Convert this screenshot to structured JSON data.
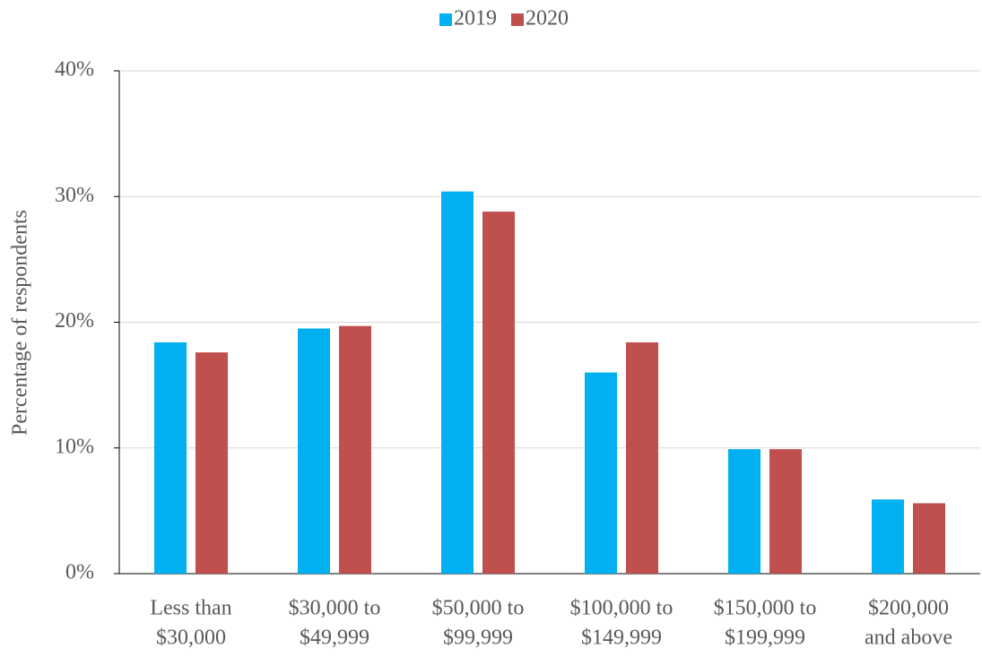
{
  "chart_data": {
    "type": "bar",
    "y_label": "Percentage of respondents",
    "categories": [
      [
        "Less than",
        "$30,000"
      ],
      [
        "$30,000 to",
        "$49,999"
      ],
      [
        "$50,000 to",
        "$99,999"
      ],
      [
        "$100,000 to",
        "$149,999"
      ],
      [
        "$150,000 to",
        "$199,999"
      ],
      [
        "$200,000",
        "and above"
      ]
    ],
    "series": [
      {
        "name": "2019",
        "color": "#00b0f0",
        "values": [
          18.4,
          19.5,
          30.4,
          16.0,
          9.9,
          5.9
        ]
      },
      {
        "name": "2020",
        "color": "#c0504d",
        "values": [
          17.6,
          19.7,
          28.8,
          18.4,
          9.9,
          5.6
        ]
      }
    ],
    "ylim": [
      0,
      40
    ],
    "yticks": [
      {
        "value": 0,
        "label": "0%"
      },
      {
        "value": 10,
        "label": "10%"
      },
      {
        "value": 20,
        "label": "20%"
      },
      {
        "value": 30,
        "label": "30%"
      },
      {
        "value": 40,
        "label": "40%"
      }
    ],
    "grid": true,
    "legend": "top"
  }
}
